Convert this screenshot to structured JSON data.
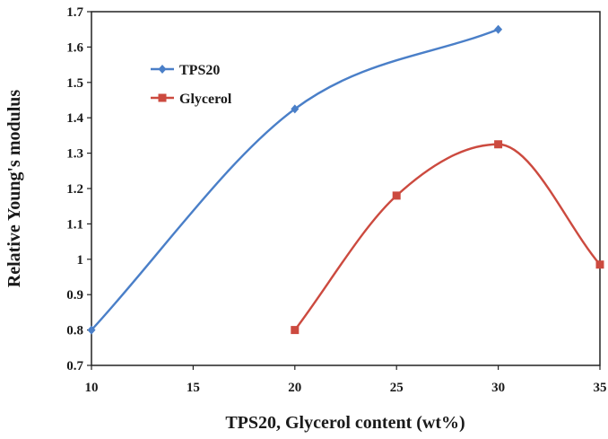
{
  "chart_data": {
    "type": "line",
    "title": "",
    "xlabel": "TPS20, Glycerol content (wt%)",
    "ylabel": "Relative Young's modulus",
    "xlim": [
      10,
      35
    ],
    "ylim": [
      0.7,
      1.7
    ],
    "x_ticks": [
      10,
      15,
      20,
      25,
      30,
      35
    ],
    "y_ticks": [
      0.7,
      0.8,
      0.9,
      1,
      1.1,
      1.2,
      1.3,
      1.4,
      1.5,
      1.6,
      1.7
    ],
    "x_tick_labels": [
      "10",
      "15",
      "20",
      "25",
      "30",
      "35"
    ],
    "y_tick_labels": [
      "0.7",
      "0.8",
      "0.9",
      "1",
      "1.1",
      "1.2",
      "1.3",
      "1.4",
      "1.5",
      "1.6",
      "1.7"
    ],
    "grid": false,
    "smooth": true,
    "legend": "top-left",
    "series": [
      {
        "name": "TPS20",
        "color": "#4a7fc8",
        "marker": "diamond",
        "x": [
          10,
          20,
          30
        ],
        "y": [
          0.8,
          1.425,
          1.65
        ]
      },
      {
        "name": "Glycerol",
        "color": "#cc4a3f",
        "marker": "square",
        "x": [
          20,
          25,
          30,
          35
        ],
        "y": [
          0.8,
          1.18,
          1.325,
          0.985
        ]
      }
    ]
  }
}
